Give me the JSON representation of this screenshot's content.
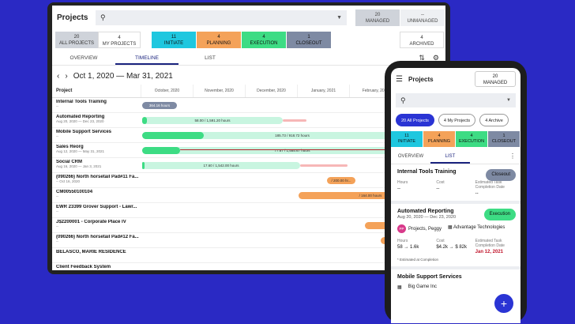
{
  "desktop": {
    "title": "Projects",
    "managed_count": "20",
    "managed_label": "MANAGED",
    "unmanaged_count": "--",
    "unmanaged_label": "UNMANAGED",
    "filters": [
      {
        "count": "20",
        "label": "ALL PROJECTS"
      },
      {
        "count": "4",
        "label": "MY PROJECTS"
      }
    ],
    "phases": [
      {
        "count": "11",
        "label": "INITIATE",
        "color": "#1fc7df"
      },
      {
        "count": "4",
        "label": "PLANNING",
        "color": "#f4a259"
      },
      {
        "count": "4",
        "label": "EXECUTION",
        "color": "#3ddc84"
      },
      {
        "count": "1",
        "label": "CLOSEOUT",
        "color": "#7e8aa3"
      }
    ],
    "archived_count": "4",
    "archived_label": "ARCHIVED",
    "tabs": [
      "OVERVIEW",
      "TIMELINE",
      "LIST"
    ],
    "date_range": "Oct 1, 2020 — Mar 31, 2021",
    "gantt_header": "Project",
    "months": [
      "October, 2020",
      "November, 2020",
      "December, 2020",
      "January, 2021",
      "February, 2021"
    ],
    "rows": [
      {
        "name": "Internal Tools Training",
        "date": "--"
      },
      {
        "name": "Automated Reporting",
        "date": "Aug 20, 2020 — Dec 23, 2020"
      },
      {
        "name": "Mobile Support Services",
        "date": "--"
      },
      {
        "name": "Sales Reorg",
        "date": "Aug 12, 2020 — May 31, 2021"
      },
      {
        "name": "Social CRM",
        "date": "Aug 16, 2020 — Jan 3, 2021"
      },
      {
        "name": "(090266) North horsetail Pad#11 Fa...",
        "date": "-- Oct 16, 2020"
      },
      {
        "name": "CM00550100104",
        "date": "--"
      },
      {
        "name": "EWR 23399 Grover Support - Lawr...",
        "date": "--"
      },
      {
        "name": "J$2200001 - Corporate Place IV",
        "date": "--"
      },
      {
        "name": "(090266) North horsetail Pad#12 Fa...",
        "date": "--"
      },
      {
        "name": "BELASCO, MARIE RESIDENCE",
        "date": ""
      },
      {
        "name": "Client Feedback System",
        "date": ""
      }
    ],
    "bars": [
      {
        "label": "364.16 hours"
      },
      {
        "label": "58.00 / 1,591.20 hours"
      },
      {
        "label": "185.73 / 918.72 hours"
      },
      {
        "label": "77.67 / 1,585.67 hours"
      },
      {
        "label": "17.60 / 1,542.00 hours"
      },
      {
        "label": "/ 200.00 hr..."
      },
      {
        "label": "/ 164.00 hours"
      }
    ]
  },
  "mobile": {
    "title": "Projects",
    "managed_count": "20",
    "managed_label": "MANAGED",
    "chips": [
      "20 All Projects",
      "4 My Projects",
      "4 Archive"
    ],
    "phases": [
      {
        "count": "11",
        "label": "INITIATE",
        "color": "#1fc7df"
      },
      {
        "count": "4",
        "label": "PLANNING",
        "color": "#f4a259"
      },
      {
        "count": "4",
        "label": "EXECUTION",
        "color": "#3ddc84"
      },
      {
        "count": "1",
        "label": "CLOSEOUT",
        "color": "#7e8aa3"
      }
    ],
    "tabs": [
      "OVERVIEW",
      "LIST"
    ],
    "cards": [
      {
        "name": "Internal Tools Training",
        "button": "Closeout",
        "hours_label": "Hours",
        "hours": "--",
        "cost_label": "Cost",
        "cost": "--",
        "completion_label": "Estimated Task Completion Date",
        "completion": "--"
      },
      {
        "name": "Automated Reporting",
        "date": "Aug 20, 2020 — Dec 23, 2020",
        "button": "Execution",
        "assignee": "Projects, Peggy",
        "assignee_initials": "PP",
        "team": "Advantage Technologies",
        "hours_label": "Hours",
        "hours": "58 → 1.6k",
        "cost_label": "Cost",
        "cost": "$4.2k → $ 82k",
        "completion_label": "Estimated Task Completion Date",
        "completion": "Jan 12, 2021",
        "note": "* Estimated at Completion"
      },
      {
        "name": "Mobile Support Services",
        "team": "Big Game Inc"
      }
    ]
  }
}
